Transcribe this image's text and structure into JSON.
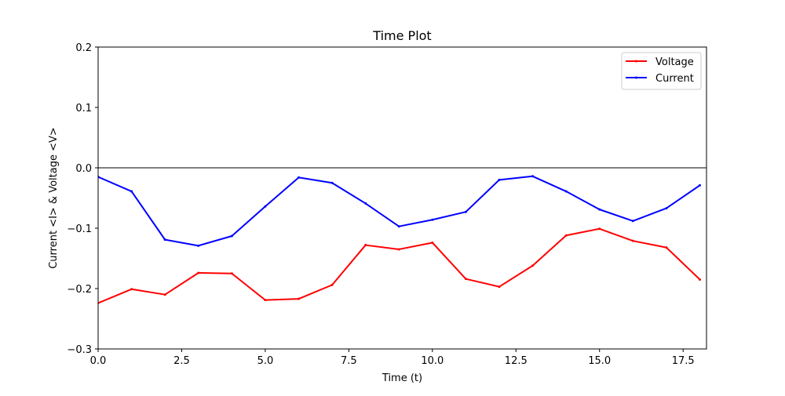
{
  "chart_data": {
    "type": "line",
    "title": "Time Plot",
    "xlabel": "Time (t)",
    "ylabel": "Current <I> & Voltage <V>",
    "xlim": [
      0,
      18.2
    ],
    "ylim": [
      -0.3,
      0.2
    ],
    "x_ticks": [
      0.0,
      2.5,
      5.0,
      7.5,
      10.0,
      12.5,
      15.0,
      17.5
    ],
    "x_tick_labels": [
      "0.0",
      "2.5",
      "5.0",
      "7.5",
      "10.0",
      "12.5",
      "15.0",
      "17.5"
    ],
    "y_ticks": [
      -0.3,
      -0.2,
      -0.1,
      0.0,
      0.1,
      0.2
    ],
    "y_tick_labels": [
      "−0.3",
      "−0.2",
      "−0.1",
      "0.0",
      "0.1",
      "0.2"
    ],
    "zero_line": true,
    "grid": false,
    "legend_position": "top-right",
    "x": [
      0,
      1,
      2,
      3,
      4,
      5,
      6,
      7,
      8,
      9,
      10,
      11,
      12,
      13,
      14,
      15,
      16,
      17,
      18
    ],
    "series": [
      {
        "name": "Voltage",
        "color": "#ff0000",
        "values": [
          -0.224,
          -0.201,
          -0.21,
          -0.174,
          -0.175,
          -0.219,
          -0.217,
          -0.194,
          -0.128,
          -0.135,
          -0.124,
          -0.184,
          -0.197,
          -0.162,
          -0.112,
          -0.101,
          -0.121,
          -0.132,
          -0.185
        ]
      },
      {
        "name": "Current",
        "color": "#0000ff",
        "values": [
          -0.015,
          -0.039,
          -0.119,
          -0.129,
          -0.113,
          -0.064,
          -0.016,
          -0.025,
          -0.059,
          -0.097,
          -0.086,
          -0.073,
          -0.02,
          -0.014,
          -0.039,
          -0.069,
          -0.088,
          -0.067,
          -0.029
        ]
      }
    ]
  }
}
